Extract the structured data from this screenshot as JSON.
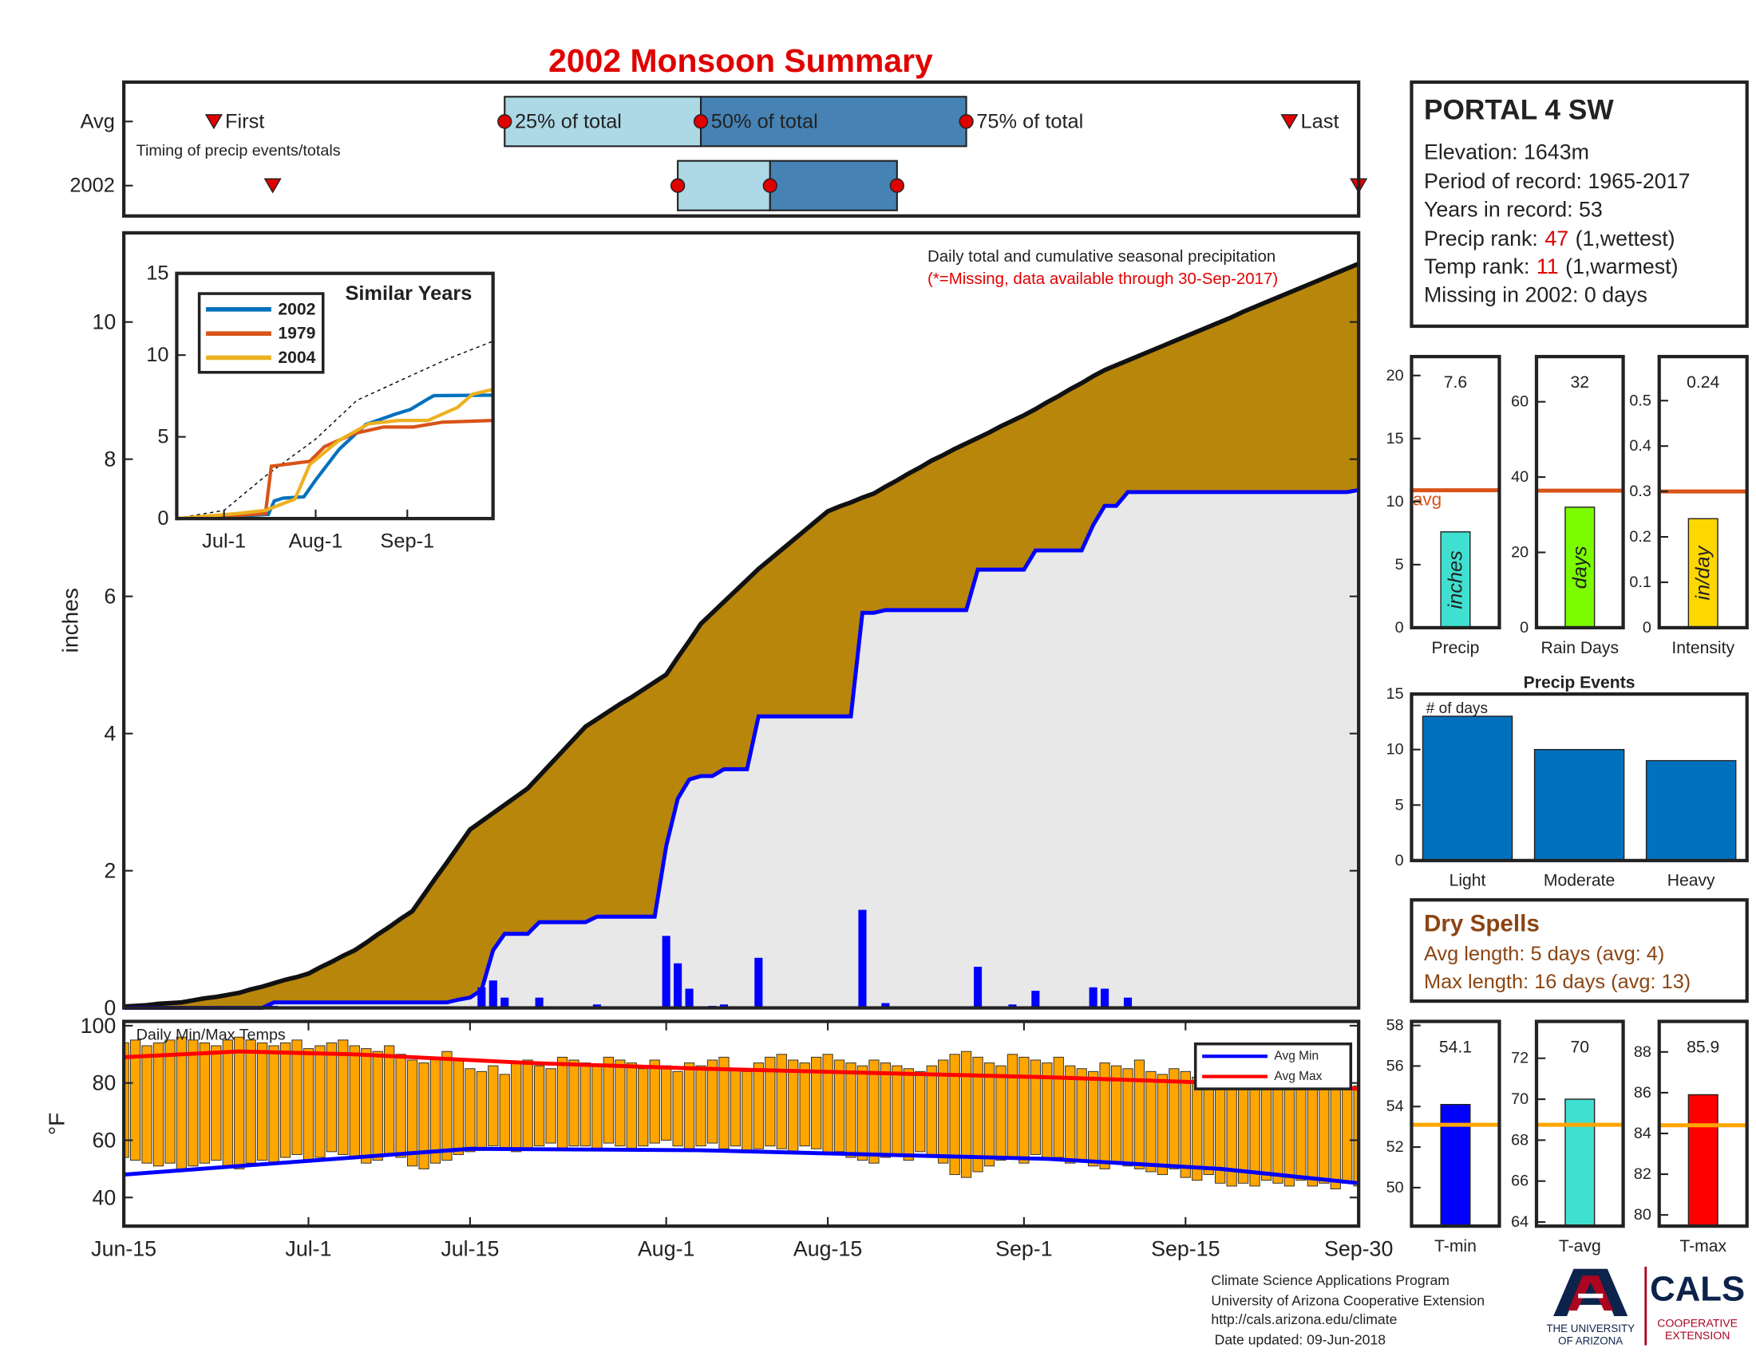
{
  "title": "2002 Monsoon Summary",
  "station": {
    "name": "PORTAL 4 SW",
    "elevation": "Elevation: 1643m",
    "period": "Period of record: 1965-2017",
    "years": "Years in record: 53",
    "precip_rank": {
      "label": "Precip rank:",
      "rank": 47,
      "note": "(1,wettest)"
    },
    "temp_rank": {
      "label": "Temp rank:",
      "rank": 11,
      "note": "(1,warmest)"
    },
    "missing": "Missing in 2002: 0 days"
  },
  "dry_spells": {
    "title": "Dry Spells",
    "avg": "Avg length: 5 days (avg: 4)",
    "max": "Max length: 16 days (avg: 13)"
  },
  "footer": {
    "lines": [
      "Climate Science Applications Program",
      "University of Arizona Cooperative Extension",
      "http://cals.arizona.edu/climate",
      "Date updated: 09-Jun-2018"
    ],
    "logo": {
      "university": [
        "THE UNIVERSITY",
        "OF ARIZONA"
      ],
      "cals": "CALS",
      "extension": [
        "COOPERATIVE",
        "EXTENSION"
      ]
    }
  },
  "chart_data": [
    {
      "type": "timing",
      "annotation": "Timing of precip events/totals",
      "categories": [
        "Avg",
        "2002"
      ],
      "xlim": [
        0,
        107
      ],
      "labels": {
        "first": "First",
        "p25": "25% of total",
        "p50": "50% of total",
        "p75": "75% of total",
        "last": "Last"
      },
      "light_color": "#add8e6",
      "dark_color": "#4682b4",
      "marker_color": "#e00000",
      "rows": [
        {
          "first": 7.8,
          "p25": 33,
          "p50": 50,
          "p75": 73,
          "last": 101
        },
        {
          "first": 12.9,
          "p25": 48,
          "p50": 56,
          "p75": 67,
          "last": 107
        }
      ]
    },
    {
      "type": "precip",
      "annotation": "Daily total and cumulative seasonal precipitation",
      "note": "(*=Missing, data available through 30-Sep-2017)",
      "ylabel": "inches",
      "xlim": [
        0,
        107
      ],
      "ylim": [
        0,
        11.3
      ],
      "yticks": [
        0,
        2,
        4,
        6,
        8,
        10
      ],
      "x": [
        0,
        1,
        2,
        3,
        4,
        5,
        6,
        7,
        8,
        9,
        10,
        11,
        12,
        13,
        14,
        15,
        16,
        17,
        18,
        19,
        20,
        21,
        22,
        23,
        24,
        25,
        26,
        27,
        28,
        29,
        30,
        31,
        32,
        33,
        34,
        35,
        36,
        37,
        38,
        39,
        40,
        41,
        42,
        43,
        44,
        45,
        46,
        47,
        48,
        49,
        50,
        51,
        52,
        53,
        54,
        55,
        56,
        57,
        58,
        59,
        60,
        61,
        62,
        63,
        64,
        65,
        66,
        67,
        68,
        69,
        70,
        71,
        72,
        73,
        74,
        75,
        76,
        77,
        78,
        79,
        80,
        81,
        82,
        83,
        84,
        85,
        86,
        87,
        88,
        89,
        90,
        91,
        92,
        93,
        94,
        95,
        96,
        97,
        98,
        99,
        100,
        101,
        102,
        103,
        104,
        105,
        106,
        107
      ],
      "average_cumulative": {
        "color": "#b8860b",
        "values": [
          0.02,
          0.03,
          0.04,
          0.06,
          0.07,
          0.08,
          0.11,
          0.14,
          0.16,
          0.19,
          0.22,
          0.27,
          0.31,
          0.36,
          0.41,
          0.45,
          0.5,
          0.59,
          0.67,
          0.76,
          0.84,
          0.95,
          1.07,
          1.18,
          1.3,
          1.41,
          1.65,
          1.89,
          2.12,
          2.36,
          2.6,
          2.72,
          2.84,
          2.96,
          3.08,
          3.2,
          3.38,
          3.56,
          3.74,
          3.92,
          4.1,
          4.21,
          4.32,
          4.43,
          4.53,
          4.64,
          4.75,
          4.86,
          5.11,
          5.35,
          5.6,
          5.76,
          5.92,
          6.08,
          6.24,
          6.4,
          6.54,
          6.68,
          6.82,
          6.96,
          7.1,
          7.24,
          7.31,
          7.37,
          7.44,
          7.5,
          7.6,
          7.69,
          7.79,
          7.88,
          7.98,
          8.06,
          8.15,
          8.23,
          8.31,
          8.39,
          8.48,
          8.56,
          8.64,
          8.73,
          8.83,
          8.92,
          9.02,
          9.11,
          9.21,
          9.3,
          9.37,
          9.44,
          9.51,
          9.58,
          9.65,
          9.72,
          9.79,
          9.86,
          9.93,
          10,
          10.07,
          10.15,
          10.22,
          10.29,
          10.36,
          10.43,
          10.5,
          10.57,
          10.64,
          10.71,
          10.78,
          10.85
        ]
      },
      "cumulative": {
        "color": "#0000ff",
        "fill": "#e8e8e8",
        "values": [
          0,
          0,
          0,
          0,
          0,
          0,
          0,
          0,
          0,
          0,
          0,
          0,
          0,
          0.08,
          0.08,
          0.08,
          0.08,
          0.08,
          0.08,
          0.08,
          0.08,
          0.08,
          0.08,
          0.08,
          0.08,
          0.08,
          0.08,
          0.08,
          0.08,
          0.12,
          0.15,
          0.26,
          0.84,
          1.08,
          1.08,
          1.08,
          1.25,
          1.25,
          1.25,
          1.25,
          1.25,
          1.33,
          1.33,
          1.33,
          1.33,
          1.33,
          1.33,
          2.36,
          3.05,
          3.33,
          3.38,
          3.38,
          3.48,
          3.48,
          3.48,
          4.25,
          4.25,
          4.25,
          4.25,
          4.25,
          4.25,
          4.25,
          4.25,
          4.25,
          5.76,
          5.76,
          5.8,
          5.8,
          5.8,
          5.8,
          5.8,
          5.8,
          5.8,
          5.8,
          6.39,
          6.39,
          6.39,
          6.39,
          6.39,
          6.67,
          6.67,
          6.67,
          6.67,
          6.67,
          7.04,
          7.32,
          7.32,
          7.52,
          7.52,
          7.52,
          7.52,
          7.52,
          7.52,
          7.52,
          7.52,
          7.52,
          7.52,
          7.52,
          7.52,
          7.52,
          7.52,
          7.52,
          7.52,
          7.52,
          7.52,
          7.52,
          7.52,
          7.55
        ]
      },
      "daily": {
        "color": "#0000ff",
        "values": [
          0,
          0,
          0,
          0,
          0,
          0,
          0,
          0,
          0,
          0,
          0,
          0,
          0,
          0.03,
          0,
          0,
          0,
          0,
          0,
          0,
          0,
          0,
          0,
          0,
          0,
          0,
          0,
          0,
          0,
          0,
          0,
          0.3,
          0.4,
          0.15,
          0,
          0,
          0.15,
          0,
          0,
          0,
          0,
          0.05,
          0,
          0,
          0,
          0,
          0,
          1.05,
          0.65,
          0.28,
          0,
          0.03,
          0.05,
          0,
          0,
          0.73,
          0,
          0,
          0,
          0,
          0,
          0,
          0,
          0,
          1.43,
          0,
          0.07,
          0,
          0,
          0,
          0,
          0,
          0,
          0,
          0.6,
          0,
          0,
          0.05,
          0,
          0.25,
          0,
          0,
          0,
          0,
          0.3,
          0.28,
          0,
          0.15,
          0,
          0,
          0,
          0,
          0,
          0,
          0,
          0,
          0,
          0,
          0,
          0,
          0,
          0,
          0,
          0,
          0,
          0,
          0,
          0
        ]
      }
    },
    {
      "type": "line",
      "title": "Similar Years",
      "legend": "upper left",
      "xlim": [
        0,
        107
      ],
      "ylim": [
        0,
        15
      ],
      "yticks": [
        0,
        5,
        10,
        15
      ],
      "xticks": [
        {
          "value": 16,
          "label": "Jul-1"
        },
        {
          "value": 47,
          "label": "Aug-1"
        },
        {
          "value": 78,
          "label": "Sep-1"
        }
      ],
      "average": {
        "color": "#000000",
        "dashed": true,
        "x": [
          0,
          16,
          30,
          47,
          61,
          78,
          92,
          107
        ],
        "values": [
          0.02,
          0.5,
          2.6,
          4.86,
          7.24,
          8.64,
          9.79,
          10.85
        ]
      },
      "series": [
        {
          "name": "2002",
          "color": "#0072bd",
          "x": [
            0,
            13,
            31,
            33,
            36,
            43,
            47,
            55,
            64,
            74,
            79,
            85,
            87,
            107
          ],
          "values": [
            0,
            0.08,
            0.26,
            1.08,
            1.25,
            1.33,
            2.36,
            4.25,
            5.76,
            6.39,
            6.67,
            7.32,
            7.52,
            7.55
          ]
        },
        {
          "name": "1979",
          "color": "#d95319",
          "x": [
            0,
            20,
            30,
            32,
            45,
            50,
            60,
            70,
            80,
            90,
            107
          ],
          "values": [
            0,
            0.2,
            0.3,
            3.2,
            3.5,
            4.4,
            5.2,
            5.6,
            5.6,
            5.9,
            6
          ]
        },
        {
          "name": "2004",
          "color": "#edb120",
          "x": [
            0,
            20,
            30,
            40,
            45,
            55,
            65,
            75,
            85,
            95,
            100,
            107
          ],
          "values": [
            0,
            0.3,
            0.5,
            1.2,
            3.3,
            4.8,
            5.8,
            6,
            6,
            6.8,
            7.6,
            7.9
          ]
        }
      ]
    },
    {
      "type": "range_bar",
      "annotation": "Daily Min/Max Temps",
      "ylabel": "°F",
      "legend": "upper right",
      "xlim": [
        0,
        107
      ],
      "ylim": [
        30,
        101.5
      ],
      "yticks": [
        40,
        60,
        80,
        100
      ],
      "xticks": [
        {
          "value": 0,
          "label": "Jun-15"
        },
        {
          "value": 16,
          "label": "Jul-1"
        },
        {
          "value": 30,
          "label": "Jul-15"
        },
        {
          "value": 47,
          "label": "Aug-1"
        },
        {
          "value": 61,
          "label": "Aug-15"
        },
        {
          "value": 78,
          "label": "Sep-1"
        },
        {
          "value": 92,
          "label": "Sep-15"
        },
        {
          "value": 107,
          "label": "Sep-30"
        }
      ],
      "bar_color": "#ffa500",
      "x": [
        0,
        1,
        2,
        3,
        4,
        5,
        6,
        7,
        8,
        9,
        10,
        11,
        12,
        13,
        14,
        15,
        16,
        17,
        18,
        19,
        20,
        21,
        22,
        23,
        24,
        25,
        26,
        27,
        28,
        29,
        30,
        31,
        32,
        33,
        34,
        35,
        36,
        37,
        38,
        39,
        40,
        41,
        42,
        43,
        44,
        45,
        46,
        47,
        48,
        49,
        50,
        51,
        52,
        53,
        54,
        55,
        56,
        57,
        58,
        59,
        60,
        61,
        62,
        63,
        64,
        65,
        66,
        67,
        68,
        69,
        70,
        71,
        72,
        73,
        74,
        75,
        76,
        77,
        78,
        79,
        80,
        81,
        82,
        83,
        84,
        85,
        86,
        87,
        88,
        89,
        90,
        91,
        92,
        93,
        94,
        95,
        96,
        97,
        98,
        99,
        100,
        101,
        102,
        103,
        104,
        105,
        106,
        107
      ],
      "max": [
        94,
        95,
        93,
        94,
        95,
        96,
        95,
        94,
        93,
        95,
        96,
        95,
        94,
        93,
        94,
        95,
        92,
        93,
        94,
        95,
        93,
        92,
        91,
        93,
        90,
        88,
        87,
        89,
        91,
        88,
        85,
        84,
        86,
        83,
        87,
        88,
        86,
        85,
        89,
        88,
        87,
        86,
        89,
        88,
        87,
        85,
        88,
        86,
        84,
        87,
        86,
        88,
        89,
        85,
        84,
        87,
        89,
        90,
        88,
        87,
        89,
        90,
        88,
        87,
        86,
        88,
        87,
        86,
        85,
        84,
        86,
        88,
        90,
        91,
        89,
        87,
        86,
        90,
        89,
        88,
        87,
        89,
        86,
        85,
        84,
        87,
        86,
        85,
        88,
        84,
        83,
        85,
        84,
        82,
        80,
        81,
        83,
        79,
        80,
        82,
        81,
        83,
        80,
        79,
        82,
        80,
        78,
        79
      ],
      "min": [
        54,
        53,
        52,
        51,
        52,
        50,
        51,
        52,
        53,
        51,
        50,
        52,
        53,
        52,
        54,
        55,
        53,
        54,
        56,
        55,
        54,
        52,
        53,
        55,
        54,
        51,
        50,
        52,
        53,
        55,
        56,
        57,
        58,
        57,
        56,
        57,
        58,
        59,
        57,
        58,
        58,
        57,
        59,
        58,
        57,
        58,
        59,
        60,
        58,
        57,
        58,
        59,
        57,
        58,
        56,
        57,
        58,
        57,
        56,
        58,
        57,
        55,
        56,
        54,
        53,
        52,
        54,
        55,
        53,
        56,
        54,
        52,
        48,
        47,
        49,
        51,
        53,
        54,
        52,
        55,
        53,
        54,
        52,
        53,
        51,
        50,
        52,
        51,
        50,
        49,
        48,
        50,
        47,
        46,
        48,
        45,
        44,
        45,
        44,
        46,
        45,
        44,
        46,
        44,
        45,
        43,
        45,
        44
      ],
      "avg_min": {
        "name": "Avg Min",
        "color": "#0000ff",
        "x": [
          0,
          10,
          20,
          30,
          50,
          65,
          80,
          95,
          107
        ],
        "values": [
          48,
          51,
          54,
          57,
          56.5,
          55,
          53.5,
          50,
          45
        ]
      },
      "avg_max": {
        "name": "Avg Max",
        "color": "#ff0000",
        "x": [
          0,
          10,
          20,
          35,
          50,
          70,
          80,
          95,
          107
        ],
        "values": [
          89,
          91,
          90,
          87,
          85,
          83,
          82,
          80,
          78
        ]
      }
    },
    {
      "type": "bar",
      "categories": [
        "Precip"
      ],
      "values": [
        7.6
      ],
      "unit_label": "inches",
      "color": "#40e0d0",
      "avg": 10.9,
      "avg_label": "avg",
      "avg_color": "#d95319",
      "ylim": [
        0,
        21.5
      ],
      "yticks": [
        0,
        5,
        10,
        15,
        20
      ]
    },
    {
      "type": "bar",
      "categories": [
        "Rain Days"
      ],
      "values": [
        32
      ],
      "unit_label": "days",
      "color": "#7cfc00",
      "avg": 36.4,
      "avg_color": "#d95319",
      "ylim": [
        0,
        72
      ],
      "yticks": [
        0,
        20,
        40,
        60
      ]
    },
    {
      "type": "bar",
      "categories": [
        "Intensity"
      ],
      "values": [
        0.24
      ],
      "unit_label": "in/day",
      "color": "#ffd700",
      "avg": 0.3,
      "avg_color": "#d95319",
      "ylim": [
        0,
        0.597
      ],
      "yticks": [
        0,
        0.1,
        0.2,
        0.3,
        0.4,
        0.5
      ]
    },
    {
      "type": "bar",
      "title": "Precip Events",
      "annotation": "# of days",
      "categories": [
        "Light",
        "Moderate",
        "Heavy"
      ],
      "values": [
        13,
        10,
        9
      ],
      "color": "#0072bd",
      "ylim": [
        0,
        15
      ],
      "yticks": [
        0,
        5,
        10,
        15
      ]
    },
    {
      "type": "bar",
      "categories": [
        "T-min"
      ],
      "values": [
        54.1
      ],
      "color": "#0000ff",
      "avg": 53.1,
      "avg_color": "#ffa500",
      "ylim": [
        48.1,
        58.2
      ],
      "yticks": [
        50,
        52,
        54,
        56,
        58
      ]
    },
    {
      "type": "bar",
      "categories": [
        "T-avg"
      ],
      "values": [
        70
      ],
      "color": "#40e0d0",
      "avg": 68.75,
      "avg_color": "#ffa500",
      "ylim": [
        63.8,
        73.8
      ],
      "yticks": [
        64,
        66,
        68,
        70,
        72
      ]
    },
    {
      "type": "bar",
      "categories": [
        "T-max"
      ],
      "values": [
        85.9
      ],
      "color": "#ff0000",
      "avg": 84.4,
      "avg_color": "#ffa500",
      "ylim": [
        79.45,
        89.5
      ],
      "yticks": [
        80,
        82,
        84,
        86,
        88
      ]
    }
  ]
}
